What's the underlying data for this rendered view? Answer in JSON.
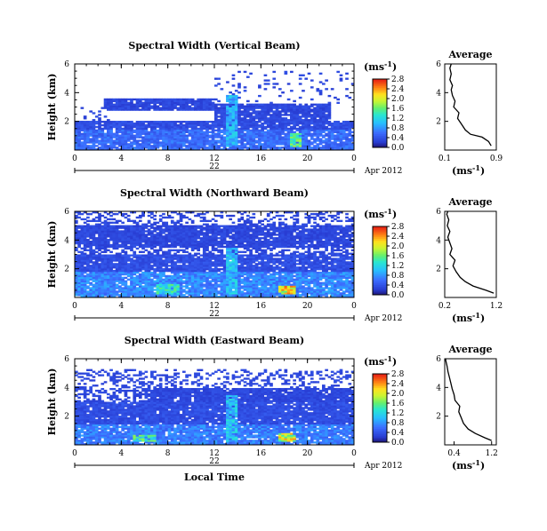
{
  "chart_data": [
    {
      "type": "heatmap",
      "title": "Spectral Width (Vertical Beam)",
      "ylabel": "Height (km)",
      "xticks": [
        "0",
        "4",
        "8",
        "12",
        "16",
        "20",
        "0"
      ],
      "yticks": [
        "2",
        "4",
        "6"
      ],
      "xlim": [
        0,
        24
      ],
      "ylim": [
        0,
        6
      ],
      "date_day": "22",
      "date_month": "Apr 2012",
      "colorbar": {
        "unit_base": "(ms",
        "unit_exp": "-1",
        "unit_close": ")",
        "ticks": [
          "0.0",
          "0.4",
          "0.8",
          "1.2",
          "1.6",
          "2.0",
          "2.4",
          "2.8"
        ]
      },
      "profile": {
        "title": "Average",
        "xticks": [
          "0.1",
          "0.9"
        ],
        "xlim": [
          0.1,
          0.9
        ],
        "yticks": [
          "2",
          "4",
          "6"
        ],
        "ylim": [
          0,
          6
        ],
        "points": [
          [
            0.82,
            0.3
          ],
          [
            0.78,
            0.6
          ],
          [
            0.68,
            0.9
          ],
          [
            0.5,
            1.1
          ],
          [
            0.42,
            1.4
          ],
          [
            0.36,
            1.8
          ],
          [
            0.3,
            2.2
          ],
          [
            0.32,
            2.6
          ],
          [
            0.24,
            3.0
          ],
          [
            0.26,
            3.4
          ],
          [
            0.22,
            3.8
          ],
          [
            0.2,
            4.2
          ],
          [
            0.22,
            4.5
          ],
          [
            0.18,
            4.9
          ],
          [
            0.2,
            5.3
          ],
          [
            0.18,
            5.7
          ],
          [
            0.2,
            6.0
          ]
        ],
        "xlabel_base": "(ms",
        "xlabel_exp": "-1",
        "xlabel_close": ")"
      },
      "regions": [
        {
          "x": [
            0,
            24
          ],
          "y": [
            0,
            1.5
          ],
          "level": 0.55
        },
        {
          "x": [
            0,
            24
          ],
          "y": [
            1.5,
            2.0
          ],
          "level": 0.35
        },
        {
          "x": [
            2.5,
            12
          ],
          "y": [
            2.8,
            3.6
          ],
          "level": 0.3
        },
        {
          "x": [
            12,
            22
          ],
          "y": [
            2.0,
            3.3
          ],
          "level": 0.3
        },
        {
          "x": [
            13,
            14
          ],
          "y": [
            0.2,
            3.8
          ],
          "level": 0.9
        },
        {
          "x": [
            18.5,
            19.5
          ],
          "y": [
            0.2,
            1.2
          ],
          "level": 1.4
        }
      ],
      "sparse_regions": [
        {
          "x": [
            12,
            24
          ],
          "y": [
            3.3,
            5.5
          ],
          "level": 0.3,
          "density": 0.08
        },
        {
          "x": [
            0,
            3
          ],
          "y": [
            2.0,
            3.0
          ],
          "level": 0.3,
          "density": 0.15
        }
      ]
    },
    {
      "type": "heatmap",
      "title": "Spectral Width (Northward Beam)",
      "ylabel": "Height (km)",
      "xticks": [
        "0",
        "4",
        "8",
        "12",
        "16",
        "20",
        "0"
      ],
      "yticks": [
        "2",
        "4",
        "6"
      ],
      "xlim": [
        0,
        24
      ],
      "ylim": [
        0,
        6
      ],
      "date_day": "22",
      "date_month": "Apr 2012",
      "colorbar": {
        "unit_base": "(ms",
        "unit_exp": "-1",
        "unit_close": ")",
        "ticks": [
          "0.0",
          "0.4",
          "0.8",
          "1.2",
          "1.6",
          "2.0",
          "2.4",
          "2.8"
        ]
      },
      "profile": {
        "title": "Average",
        "xticks": [
          "0.2",
          "1.2"
        ],
        "xlim": [
          0.2,
          1.2
        ],
        "yticks": [
          "2",
          "4",
          "6"
        ],
        "ylim": [
          0,
          6
        ],
        "points": [
          [
            1.15,
            0.3
          ],
          [
            1.0,
            0.5
          ],
          [
            0.75,
            0.8
          ],
          [
            0.6,
            1.1
          ],
          [
            0.5,
            1.4
          ],
          [
            0.42,
            1.8
          ],
          [
            0.36,
            2.2
          ],
          [
            0.4,
            2.6
          ],
          [
            0.3,
            3.0
          ],
          [
            0.34,
            3.4
          ],
          [
            0.3,
            3.8
          ],
          [
            0.26,
            4.2
          ],
          [
            0.3,
            4.6
          ],
          [
            0.25,
            5.0
          ],
          [
            0.28,
            5.4
          ],
          [
            0.24,
            5.8
          ],
          [
            0.26,
            6.0
          ]
        ],
        "xlabel_base": "(ms",
        "xlabel_exp": "-1",
        "xlabel_close": ")"
      },
      "regions": [
        {
          "x": [
            0,
            24
          ],
          "y": [
            0,
            1.8
          ],
          "level": 0.7
        },
        {
          "x": [
            0,
            24
          ],
          "y": [
            1.8,
            3.0
          ],
          "level": 0.35
        },
        {
          "x": [
            0,
            24
          ],
          "y": [
            3.5,
            5.0
          ],
          "level": 0.3
        },
        {
          "x": [
            13,
            14
          ],
          "y": [
            0.2,
            3.5
          ],
          "level": 1.0
        },
        {
          "x": [
            17.5,
            19.0
          ],
          "y": [
            0.2,
            0.8
          ],
          "level": 2.0
        },
        {
          "x": [
            7,
            9
          ],
          "y": [
            0.3,
            0.9
          ],
          "level": 1.2
        }
      ],
      "sparse_regions": [
        {
          "x": [
            0,
            24
          ],
          "y": [
            3.0,
            3.5
          ],
          "level": 0.3,
          "density": 0.5
        },
        {
          "x": [
            0,
            24
          ],
          "y": [
            5.0,
            6.0
          ],
          "level": 0.3,
          "density": 0.35
        }
      ]
    },
    {
      "type": "heatmap",
      "title": "Spectral Width (Eastward Beam)",
      "ylabel": "Height (km)",
      "xticks": [
        "0",
        "4",
        "8",
        "12",
        "16",
        "20",
        "0"
      ],
      "yticks": [
        "2",
        "4",
        "6"
      ],
      "xlim": [
        0,
        24
      ],
      "ylim": [
        0,
        6
      ],
      "date_day": "22",
      "date_month": "Apr 2012",
      "xlabel": "Local Time",
      "colorbar": {
        "unit_base": "(ms",
        "unit_exp": "-1",
        "unit_close": ")",
        "ticks": [
          "0.0",
          "0.4",
          "0.8",
          "1.2",
          "1.6",
          "2.0",
          "2.4",
          "2.8"
        ]
      },
      "profile": {
        "title": "Average",
        "xticks": [
          "0.4",
          "1.2"
        ],
        "xlim": [
          0.2,
          1.3
        ],
        "yticks": [
          "2",
          "4",
          "6"
        ],
        "ylim": [
          0,
          6
        ],
        "points": [
          [
            1.2,
            0.3
          ],
          [
            1.05,
            0.5
          ],
          [
            0.85,
            0.8
          ],
          [
            0.7,
            1.1
          ],
          [
            0.6,
            1.5
          ],
          [
            0.55,
            1.9
          ],
          [
            0.5,
            2.3
          ],
          [
            0.52,
            2.7
          ],
          [
            0.42,
            3.1
          ],
          [
            0.4,
            3.5
          ],
          [
            0.36,
            3.9
          ],
          [
            0.33,
            4.3
          ],
          [
            0.3,
            4.7
          ],
          [
            0.27,
            5.1
          ],
          [
            0.25,
            5.5
          ],
          [
            0.22,
            5.9
          ],
          [
            0.22,
            6.0
          ]
        ],
        "xlabel_base": "(ms",
        "xlabel_exp": "-1",
        "xlabel_close": ")"
      },
      "regions": [
        {
          "x": [
            0,
            24
          ],
          "y": [
            0,
            1.5
          ],
          "level": 0.65
        },
        {
          "x": [
            0,
            24
          ],
          "y": [
            1.5,
            3.0
          ],
          "level": 0.35
        },
        {
          "x": [
            6,
            24
          ],
          "y": [
            3.0,
            4.0
          ],
          "level": 0.3
        },
        {
          "x": [
            13,
            14
          ],
          "y": [
            0.3,
            3.5
          ],
          "level": 1.0
        },
        {
          "x": [
            17.5,
            19.0
          ],
          "y": [
            0.2,
            0.8
          ],
          "level": 1.8
        },
        {
          "x": [
            5,
            7
          ],
          "y": [
            0.2,
            0.7
          ],
          "level": 1.3
        }
      ],
      "sparse_regions": [
        {
          "x": [
            0,
            24
          ],
          "y": [
            4.0,
            5.3
          ],
          "level": 0.3,
          "density": 0.3
        },
        {
          "x": [
            0,
            6
          ],
          "y": [
            3.0,
            4.0
          ],
          "level": 0.3,
          "density": 0.5
        }
      ]
    }
  ]
}
